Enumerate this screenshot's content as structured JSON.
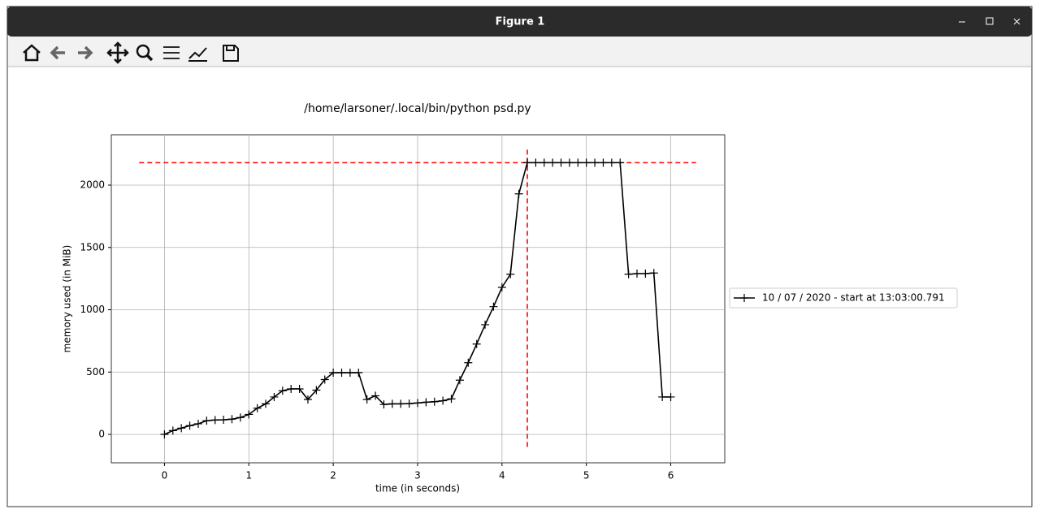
{
  "window": {
    "title": "Figure 1"
  },
  "chart_data": {
    "type": "line",
    "title": "/home/larsoner/.local/bin/python psd.py",
    "xlabel": "time (in seconds)",
    "ylabel": "memory used (in MiB)",
    "x": [
      0,
      0.1,
      0.2,
      0.3,
      0.4,
      0.5,
      0.6,
      0.7,
      0.8,
      0.9,
      1.0,
      1.1,
      1.2,
      1.3,
      1.4,
      1.5,
      1.6,
      1.7,
      1.8,
      1.9,
      2.0,
      2.1,
      2.2,
      2.3,
      2.4,
      2.5,
      2.6,
      2.7,
      2.8,
      2.9,
      3.0,
      3.1,
      3.2,
      3.3,
      3.4,
      3.5,
      3.6,
      3.7,
      3.8,
      3.9,
      4.0,
      4.1,
      4.2,
      4.3,
      4.4,
      4.5,
      4.6,
      4.7,
      4.8,
      4.9,
      5.0,
      5.1,
      5.2,
      5.3,
      5.4,
      5.5,
      5.6,
      5.7,
      5.8,
      5.9,
      6.0
    ],
    "series": [
      {
        "name": "10 / 07 / 2020 - start at 13:03:00.791",
        "color": "#000000",
        "values": [
          0,
          30,
          50,
          70,
          85,
          110,
          115,
          117,
          122,
          135,
          160,
          210,
          245,
          300,
          350,
          365,
          365,
          280,
          355,
          440,
          495,
          495,
          495,
          495,
          280,
          310,
          240,
          245,
          245,
          247,
          252,
          258,
          262,
          270,
          285,
          435,
          575,
          725,
          880,
          1025,
          1180,
          1285,
          1930,
          2180,
          2180,
          2180,
          2180,
          2180,
          2180,
          2180,
          2180,
          2180,
          2180,
          2180,
          2180,
          1285,
          1290,
          1290,
          1295,
          300,
          300
        ]
      }
    ],
    "hline": {
      "y": 2180,
      "xmin": -0.3,
      "xmax": 6.3,
      "color": "#ff0000"
    },
    "vline": {
      "x": 4.3,
      "ymin": -100,
      "ymax": 2290,
      "color": "#ff0000"
    },
    "xlim": [
      -0.63,
      6.64
    ],
    "ylim": [
      -228,
      2404
    ],
    "xticks": [
      0,
      1,
      2,
      3,
      4,
      5,
      6
    ],
    "yticks": [
      0,
      500,
      1000,
      1500,
      2000
    ],
    "grid": true,
    "legend": "outside right"
  }
}
